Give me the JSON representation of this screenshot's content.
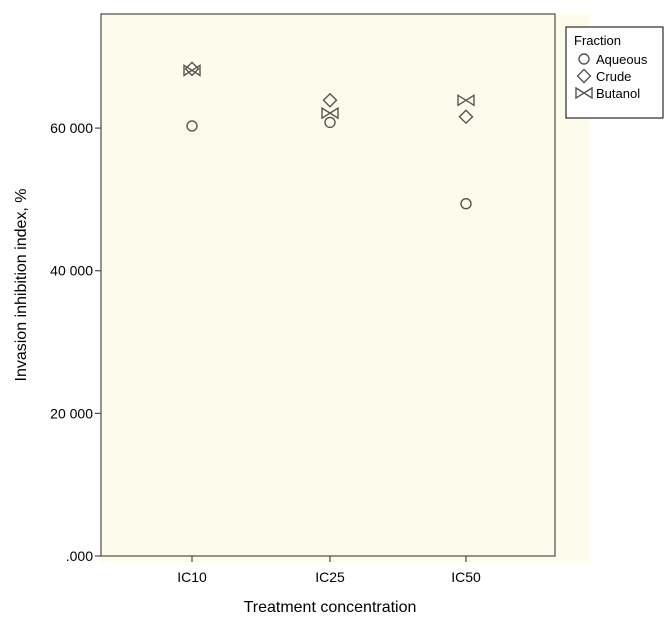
{
  "chart_data": {
    "type": "scatter",
    "xlabel": "Treatment concentration",
    "ylabel": "Invasion inhibition index, %",
    "categories": [
      "IC10",
      "IC25",
      "IC50"
    ],
    "ylim": [
      0,
      76000
    ],
    "yticks": [
      {
        "value": 0,
        "label": ".000"
      },
      {
        "value": 20000,
        "label": "20 000"
      },
      {
        "value": 40000,
        "label": "40 000"
      },
      {
        "value": 60000,
        "label": "60 000"
      }
    ],
    "grid": false,
    "legend": {
      "title": "Fraction",
      "position": "right-top"
    },
    "plot_background": "#fdfcec",
    "series": [
      {
        "name": "Aqueous",
        "marker": "circle",
        "values": [
          60300,
          60800,
          49400
        ]
      },
      {
        "name": "Crude",
        "marker": "diamond",
        "values": [
          68300,
          63900,
          61600
        ]
      },
      {
        "name": "Butanol",
        "marker": "bowtie",
        "values": [
          68100,
          62100,
          63900
        ]
      }
    ]
  }
}
